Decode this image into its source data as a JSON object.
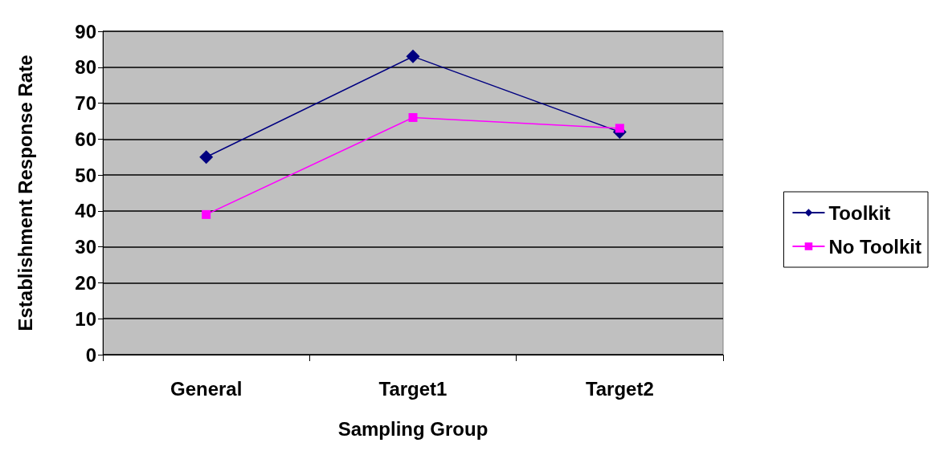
{
  "chart_data": {
    "type": "line",
    "xlabel": "Sampling Group",
    "ylabel": "Establishment Response Rate",
    "categories": [
      "General",
      "Target1",
      "Target2"
    ],
    "series": [
      {
        "name": "Toolkit",
        "color": "#000080",
        "values": [
          55,
          83,
          62
        ],
        "marker": "diamond"
      },
      {
        "name": "No Toolkit",
        "color": "#ff00ff",
        "values": [
          39,
          66,
          63
        ],
        "marker": "square"
      }
    ],
    "ylim": [
      0,
      90
    ],
    "yticks": [
      0,
      10,
      20,
      30,
      40,
      50,
      60,
      70,
      80,
      90
    ],
    "grid": "y",
    "legend": "right",
    "line_style": "solid"
  }
}
